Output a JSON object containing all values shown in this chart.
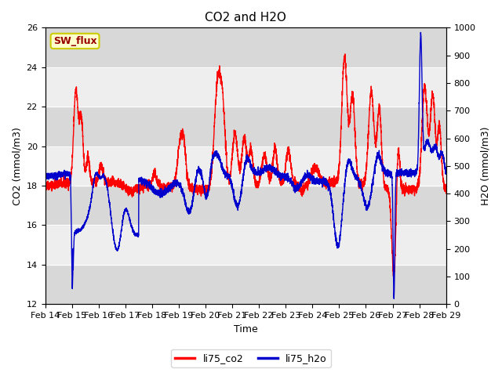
{
  "title": "CO2 and H2O",
  "xlabel": "Time",
  "ylabel_left": "CO2 (mmol/m3)",
  "ylabel_right": "H2O (mmol/m3)",
  "ylim_left": [
    12,
    26
  ],
  "ylim_right": [
    0,
    1000
  ],
  "yticks_left": [
    12,
    14,
    16,
    18,
    20,
    22,
    24,
    26
  ],
  "yticks_right": [
    0,
    100,
    200,
    300,
    400,
    500,
    600,
    700,
    800,
    900,
    1000
  ],
  "x_start": 14,
  "x_end": 29,
  "x_ticks": [
    14,
    15,
    16,
    17,
    18,
    19,
    20,
    21,
    22,
    23,
    24,
    25,
    26,
    27,
    28,
    29
  ],
  "x_tick_labels": [
    "Feb 14",
    "Feb 15",
    "Feb 16",
    "Feb 17",
    "Feb 18",
    "Feb 19",
    "Feb 20",
    "Feb 21",
    "Feb 22",
    "Feb 23",
    "Feb 24",
    "Feb 25",
    "Feb 26",
    "Feb 27",
    "Feb 28",
    "Feb 29"
  ],
  "color_co2": "#ff0000",
  "color_h2o": "#0000cc",
  "legend_co2": "li75_co2",
  "legend_h2o": "li75_h2o",
  "sw_flux_label": "SW_flux",
  "band_color_dark": "#d8d8d8",
  "band_color_light": "#eeeeee",
  "background_color": "#ffffff",
  "linewidth": 1.0,
  "title_fontsize": 11,
  "tick_fontsize": 8,
  "label_fontsize": 9
}
